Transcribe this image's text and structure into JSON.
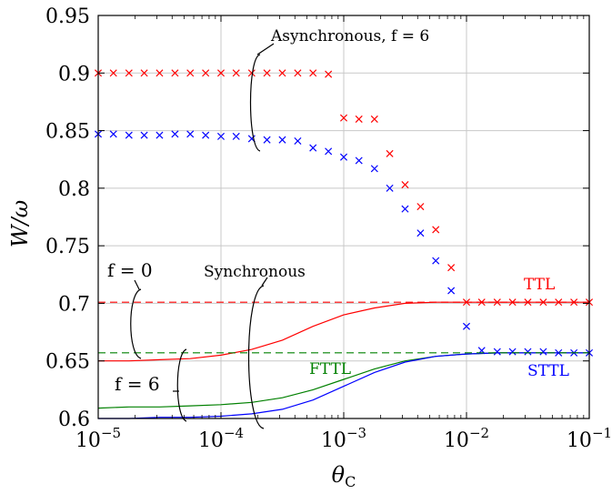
{
  "chart_data": {
    "type": "line",
    "xscale": "log",
    "xlim": [
      1e-05,
      0.1
    ],
    "ylim": [
      0.6,
      0.95
    ],
    "grid": true,
    "xlabel": "θC",
    "ylabel": "W/ω",
    "xticks": [
      {
        "value": 1e-05,
        "base": "10",
        "exp": "−5"
      },
      {
        "value": 0.0001,
        "base": "10",
        "exp": "−4"
      },
      {
        "value": 0.001,
        "base": "10",
        "exp": "−3"
      },
      {
        "value": 0.01,
        "base": "10",
        "exp": "−2"
      },
      {
        "value": 0.1,
        "base": "10",
        "exp": "−1"
      }
    ],
    "yticks": [
      {
        "value": 0.6,
        "label": "0.6"
      },
      {
        "value": 0.65,
        "label": "0.65"
      },
      {
        "value": 0.7,
        "label": "0.7"
      },
      {
        "value": 0.75,
        "label": "0.75"
      },
      {
        "value": 0.8,
        "label": "0.8"
      },
      {
        "value": 0.85,
        "label": "0.85"
      },
      {
        "value": 0.9,
        "label": "0.9"
      },
      {
        "value": 0.95,
        "label": "0.95"
      }
    ],
    "series": [
      {
        "kind": "markers",
        "color": "#ff0000",
        "x": [
          1e-05,
          1.33e-05,
          1.78e-05,
          2.37e-05,
          3.16e-05,
          4.22e-05,
          5.62e-05,
          7.5e-05,
          0.0001,
          0.000133,
          0.000178,
          0.000237,
          0.000316,
          0.000422,
          0.000562,
          0.00075,
          0.001,
          0.00133,
          0.00178,
          0.00237,
          0.00316,
          0.00422,
          0.00562,
          0.0075,
          0.01,
          0.0133,
          0.0178,
          0.0237,
          0.0316,
          0.0422,
          0.0562,
          0.075,
          0.1
        ],
        "y": [
          0.9,
          0.9,
          0.9,
          0.9,
          0.9,
          0.9,
          0.9,
          0.9,
          0.9,
          0.9,
          0.9,
          0.9,
          0.9,
          0.9,
          0.9,
          0.899,
          0.861,
          0.86,
          0.86,
          0.83,
          0.803,
          0.784,
          0.764,
          0.731,
          0.701,
          0.701,
          0.701,
          0.701,
          0.701,
          0.701,
          0.701,
          0.701,
          0.701
        ]
      },
      {
        "kind": "markers",
        "color": "#0000ff",
        "x": [
          1e-05,
          1.33e-05,
          1.78e-05,
          2.37e-05,
          3.16e-05,
          4.22e-05,
          5.62e-05,
          7.5e-05,
          0.0001,
          0.000133,
          0.000178,
          0.000237,
          0.000316,
          0.000422,
          0.000562,
          0.00075,
          0.001,
          0.00133,
          0.00178,
          0.00237,
          0.00316,
          0.00422,
          0.00562,
          0.0075,
          0.01,
          0.0133,
          0.0178,
          0.0237,
          0.0316,
          0.0422,
          0.0562,
          0.075,
          0.1
        ],
        "y": [
          0.847,
          0.847,
          0.846,
          0.846,
          0.846,
          0.847,
          0.847,
          0.846,
          0.845,
          0.845,
          0.843,
          0.842,
          0.842,
          0.841,
          0.835,
          0.832,
          0.827,
          0.824,
          0.817,
          0.8,
          0.782,
          0.761,
          0.737,
          0.711,
          0.68,
          0.659,
          0.658,
          0.658,
          0.658,
          0.658,
          0.657,
          0.657,
          0.657
        ]
      },
      {
        "kind": "line",
        "color": "#ff0000",
        "x": [
          1e-05,
          1.78e-05,
          3.16e-05,
          5.62e-05,
          0.0001,
          0.000178,
          0.000316,
          0.000562,
          0.001,
          0.00178,
          0.00316,
          0.00562,
          0.01,
          0.0178,
          0.0316,
          0.0562,
          0.1
        ],
        "y": [
          0.65,
          0.65,
          0.651,
          0.652,
          0.655,
          0.66,
          0.668,
          0.68,
          0.69,
          0.696,
          0.7,
          0.701,
          0.701,
          0.701,
          0.701,
          0.701,
          0.701
        ]
      },
      {
        "kind": "line",
        "color": "#008000",
        "x": [
          1e-05,
          1.78e-05,
          3.16e-05,
          5.62e-05,
          0.0001,
          0.000178,
          0.000316,
          0.000562,
          0.001,
          0.00178,
          0.00316,
          0.00562,
          0.01,
          0.0178,
          0.0316,
          0.0562,
          0.1
        ],
        "y": [
          0.609,
          0.61,
          0.61,
          0.611,
          0.612,
          0.614,
          0.618,
          0.625,
          0.634,
          0.643,
          0.65,
          0.654,
          0.656,
          0.657,
          0.657,
          0.657,
          0.657
        ]
      },
      {
        "kind": "line",
        "color": "#0000ff",
        "x": [
          1e-05,
          1.78e-05,
          3.16e-05,
          5.62e-05,
          0.0001,
          0.000178,
          0.000316,
          0.000562,
          0.001,
          0.00178,
          0.00316,
          0.00562,
          0.01,
          0.0178,
          0.0316,
          0.0562,
          0.1
        ],
        "y": [
          0.6,
          0.6,
          0.601,
          0.601,
          0.602,
          0.604,
          0.608,
          0.616,
          0.628,
          0.64,
          0.649,
          0.654,
          0.656,
          0.657,
          0.657,
          0.657,
          0.657
        ]
      },
      {
        "kind": "hline",
        "color": "#ff0000",
        "dashed": true,
        "y": 0.701
      },
      {
        "kind": "hline",
        "color": "#008000",
        "dashed": true,
        "y": 0.657
      }
    ],
    "annotations": {
      "asynchronous": "Asynchronous, f = 6",
      "synchronous": "Synchronous",
      "f0": "f = 0",
      "f6": "f = 6",
      "ttl": "TTL",
      "fttl": "FTTL",
      "sttl": "STTL"
    },
    "colors": {
      "ttl": "#ff0000",
      "fttl": "#008000",
      "sttl": "#0000ff"
    }
  }
}
